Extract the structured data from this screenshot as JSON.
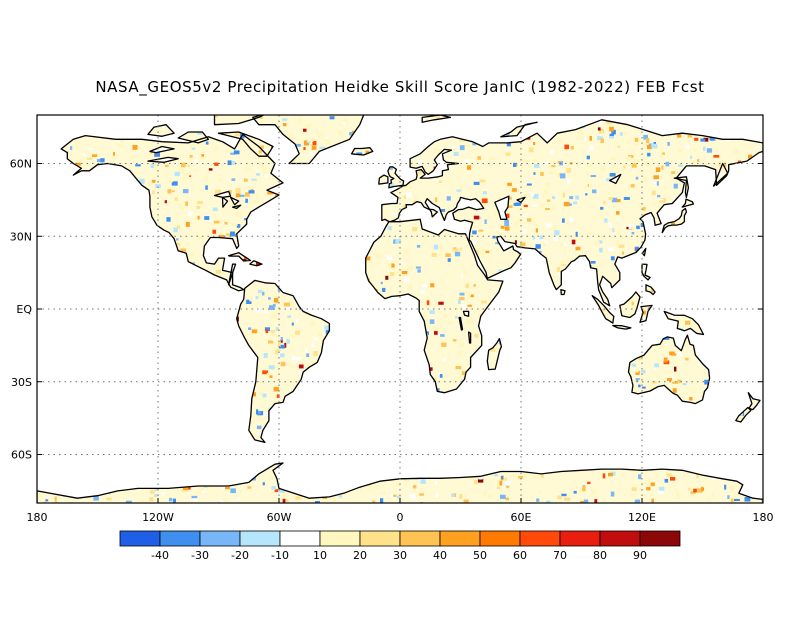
{
  "title": "NASA_GEOS5v2 Precipitation Heidke Skill Score JanIC (1982-2022) FEB Fcst",
  "map": {
    "lon_range": [
      -180,
      180
    ],
    "lat_range": [
      -80,
      80
    ],
    "projection": "equirectangular",
    "grid_lines": "dotted",
    "x_ticks": [
      {
        "lon": -180,
        "label": "180"
      },
      {
        "lon": -120,
        "label": "120W"
      },
      {
        "lon": -60,
        "label": "60W"
      },
      {
        "lon": 0,
        "label": "0"
      },
      {
        "lon": 60,
        "label": "60E"
      },
      {
        "lon": 120,
        "label": "120E"
      },
      {
        "lon": 180,
        "label": "180"
      }
    ],
    "y_ticks": [
      {
        "lat": 60,
        "label": "60N"
      },
      {
        "lat": 30,
        "label": "30N"
      },
      {
        "lat": 0,
        "label": "EQ"
      },
      {
        "lat": -30,
        "label": "30S"
      },
      {
        "lat": -60,
        "label": "60S"
      }
    ]
  },
  "colorbar": {
    "colors": [
      "#1f5fe6",
      "#3f8ff0",
      "#78b6f7",
      "#b5e6fb",
      "#ffffff",
      "#fff7bf",
      "#ffe28a",
      "#ffc354",
      "#ffa020",
      "#ff7a00",
      "#ff4a0a",
      "#e81e0e",
      "#c00e0e",
      "#8c0808"
    ],
    "labels": [
      "-40",
      "-30",
      "-20",
      "-10",
      "10",
      "20",
      "30",
      "40",
      "50",
      "60",
      "70",
      "80",
      "90"
    ]
  }
}
